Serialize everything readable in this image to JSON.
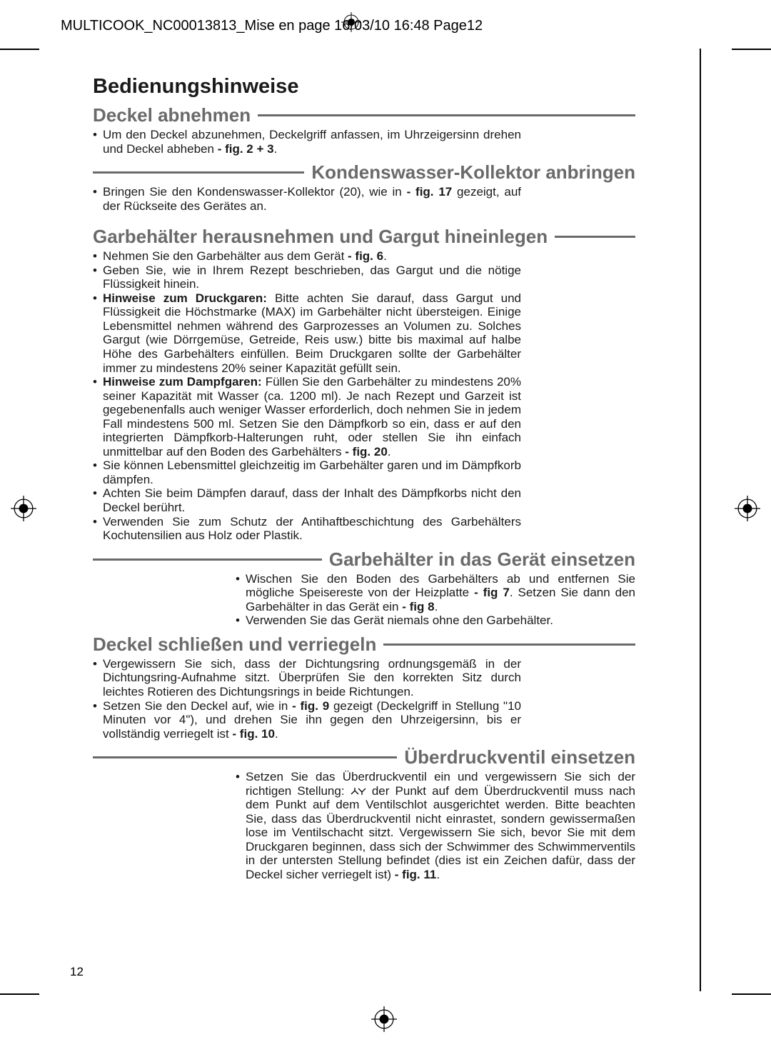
{
  "header": "MULTICOOK_NC00013813_Mise en page   16/03/10  16:48  Page12",
  "page_number": "12",
  "colors": {
    "text": "#1a1a1a",
    "heading_gray": "#6a6a6a",
    "background": "#ffffff",
    "rule": "#6a6a6a"
  },
  "typography": {
    "h1_size": 29,
    "h2_size": 26,
    "body_size": 17,
    "body_line_height": 1.15
  },
  "title": "Bedienungshinweise",
  "sections": [
    {
      "heading": "Deckel abnehmen",
      "align": "left",
      "body_narrow": true,
      "items": [
        "Um den Deckel abzunehmen, Deckelgriff anfassen, im Uhrzeigersinn drehen und Deckel abheben <b>- fig. 2 + 3</b>."
      ]
    },
    {
      "heading": "Kondenswasser-Kollektor anbringen",
      "align": "right",
      "body_narrow": true,
      "items": [
        "Bringen Sie den Kondenswasser-Kollektor (20), wie in <b>- fig. 17</b> gezeigt, auf der Rückseite des Gerätes an."
      ]
    },
    {
      "heading": "Garbehälter herausnehmen und Gargut hineinlegen",
      "align": "left",
      "body_narrow": true,
      "gap_before": 18,
      "items": [
        "Nehmen Sie den Garbehälter aus dem Gerät <b>- fig. 6</b>.",
        "Geben Sie, wie in Ihrem Rezept beschrieben, das Gargut und die nötige Flüssigkeit hinein.",
        "<b>Hinweise zum Druckgaren:</b> Bitte achten Sie darauf, dass Gargut und Flüssigkeit die Höchstmarke (MAX) im Garbehälter nicht übersteigen. Einige Lebensmittel nehmen während des Garprozesses an Volumen zu. Solches Gargut (wie Dörrgemüse, Getreide, Reis usw.) bitte bis maximal auf halbe Höhe des Garbehälters einfüllen. Beim Druckgaren sollte der Garbehälter immer zu mindestens 20% seiner Kapazität gefüllt sein.",
        "<b>Hinweise zum Dampfgaren:</b> Füllen Sie den Garbehälter zu mindestens 20% seiner Kapazität mit Wasser (ca. 1200 ml). Je nach Rezept und Garzeit ist gegebenenfalls auch weniger Wasser erforderlich, doch nehmen Sie in jedem Fall mindestens 500 ml. Setzen Sie den Dämpfkorb so ein, dass er auf den integrierten Dämpfkorb-Halterungen ruht, oder stellen Sie ihn einfach unmittelbar auf den Boden des Garbehälters <b>- fig. 20</b>.",
        "Sie können Lebensmittel gleichzeitig im Garbehälter garen und im Dämpfkorb dämpfen.",
        "Achten Sie beim Dämpfen darauf, dass der Inhalt des Dämpfkorbs nicht den Deckel berührt.",
        "Verwenden Sie zum Schutz der Antihaftbeschichtung des Garbehälters Kochutensilien aus Holz oder Plastik."
      ]
    },
    {
      "heading": "Garbehälter in das Gerät einsetzen",
      "align": "right",
      "body_narrow_right": true,
      "items": [
        "Wischen Sie den Boden des Garbehälters ab und entfernen Sie mögliche Speisereste von der Heizplatte <b>- fig 7</b>. Setzen Sie dann den Garbehälter in das Gerät ein <b>- fig 8</b>.",
        "Verwenden Sie das Gerät niemals ohne den Garbehälter."
      ]
    },
    {
      "heading": "Deckel schließen und verriegeln",
      "align": "left",
      "body_narrow": true,
      "items": [
        "Vergewissern Sie sich, dass der Dichtungsring ordnungsgemäß in der Dichtungsring-Aufnahme sitzt. Überprüfen Sie den korrekten Sitz durch leichtes Rotieren des Dichtungsrings in beide Richtungen.",
        "Setzen Sie den Deckel auf, wie in <b>- fig. 9</b> gezeigt (Deckelgriff in Stellung \"10 Minuten vor 4\"), und drehen Sie ihn gegen den Uhrzeigersinn, bis er vollständig verriegelt ist <b>- fig. 10</b>."
      ]
    },
    {
      "heading": "Überdruckventil einsetzen",
      "align": "right",
      "body_narrow_right": true,
      "items": [
        "Setzen Sie das Überdruckventil ein und vergewissern Sie sich der richtigen Stellung: <svg class='inline-icon' width='22' height='14' viewBox='0 0 22 14'><path d='M1 11 L6 6 L11 11 M6 6 L6 2 M11 3 L16 8 L21 3 M16 8 L16 12' stroke='#000' stroke-width='1.3' fill='none'/></svg> der Punkt auf dem Überdruckventil muss nach dem Punkt auf dem Ventilschlot ausgerichtet werden. Bitte beachten Sie, dass das Überdruckventil nicht einrastet, sondern gewissermaßen lose im Ventilschacht sitzt. Vergewissern Sie sich, bevor Sie mit dem Druckgaren beginnen, dass sich der Schwimmer des Schwimmerventils in der untersten Stellung befindet (dies ist ein Zeichen dafür, dass der Deckel sicher verriegelt ist) <b>- fig. 11</b>."
      ]
    }
  ]
}
